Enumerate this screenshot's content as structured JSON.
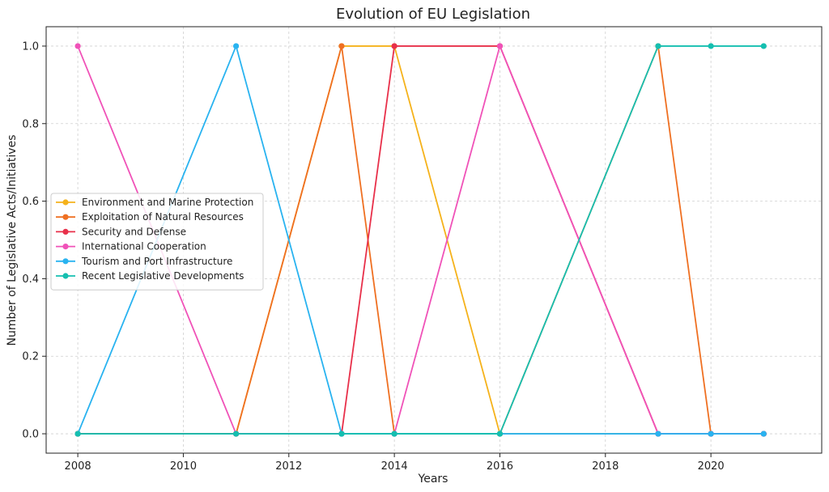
{
  "chart_data": {
    "type": "line",
    "title": "Evolution of EU Legislation",
    "xlabel": "Years",
    "ylabel": "Number of Legislative Acts/Initiatives",
    "xlim": [
      2007.4,
      2022.1
    ],
    "ylim": [
      -0.05,
      1.05
    ],
    "x_ticks": [
      2008,
      2010,
      2012,
      2014,
      2016,
      2018,
      2020
    ],
    "y_ticks": [
      0.0,
      0.2,
      0.4,
      0.6,
      0.8,
      1.0
    ],
    "x_tick_labels": [
      "2008",
      "2010",
      "2012",
      "2014",
      "2016",
      "2018",
      "2020"
    ],
    "y_tick_labels": [
      "0.0",
      "0.2",
      "0.4",
      "0.6",
      "0.8",
      "1.0"
    ],
    "grid": true,
    "legend_position": "center-left",
    "x": [
      2008,
      2011,
      2013,
      2014,
      2016,
      2019,
      2020,
      2021
    ],
    "series": [
      {
        "name": "Environment and Marine Protection",
        "color": "#f5b21b",
        "values": [
          0,
          0,
          1,
          1,
          0,
          0,
          0,
          0
        ]
      },
      {
        "name": "Exploitation of Natural Resources",
        "color": "#ef7022",
        "values": [
          0,
          0,
          1,
          0,
          0,
          1,
          0,
          0
        ]
      },
      {
        "name": "Security and Defense",
        "color": "#e8304a",
        "values": [
          0,
          0,
          0,
          1,
          1,
          0,
          0,
          0
        ]
      },
      {
        "name": "International Cooperation",
        "color": "#f052b8",
        "values": [
          1,
          0,
          0,
          0,
          1,
          0,
          0,
          0
        ]
      },
      {
        "name": "Tourism and Port Infrastructure",
        "color": "#29b3f0",
        "values": [
          0,
          1,
          0,
          0,
          0,
          0,
          0,
          0
        ]
      },
      {
        "name": "Recent Legislative Developments",
        "color": "#15bfb0",
        "values": [
          0,
          0,
          0,
          0,
          0,
          1,
          1,
          1
        ]
      }
    ]
  }
}
